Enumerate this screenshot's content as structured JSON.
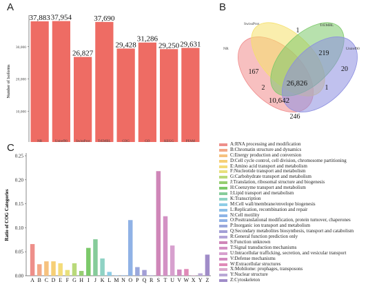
{
  "panels": {
    "a": "A",
    "b": "B",
    "c": "C"
  },
  "colors": {
    "bar_a": "#ee6c64",
    "axis": "#555555"
  },
  "chart_data": [
    {
      "type": "bar",
      "categories": [
        "NR",
        "Uniref90",
        "SwissProt",
        "TrEMBL",
        "COG",
        "GO",
        "KEGG",
        "PFAM"
      ],
      "values": [
        37883,
        37954,
        26827,
        37690,
        29428,
        31286,
        29250,
        29631
      ],
      "data_labels": [
        "37,883",
        "37,954",
        "26,827",
        "37,690",
        "29,428",
        "31,286",
        "29,250",
        "29,631"
      ],
      "ylabel": "Number of Isoforms",
      "ylim": [
        0,
        40000
      ],
      "yticks": [
        0,
        10000,
        20000,
        30000
      ],
      "ytick_labels": [
        "0",
        "10,000",
        "20,000",
        "30,000"
      ]
    },
    {
      "type": "venn",
      "sets": [
        {
          "name": "NR",
          "color": "#f08c8c"
        },
        {
          "name": "SwissProt",
          "color": "#f5e06a"
        },
        {
          "name": "TrEMBL",
          "color": "#7cc96a"
        },
        {
          "name": "Uniref90",
          "color": "#8c8ee0"
        }
      ],
      "counts": [
        {
          "region": "NR only",
          "value": "167"
        },
        {
          "region": "TrEMBL only",
          "value": "1"
        },
        {
          "region": "TrEMBL ∩ Uniref90",
          "value": "219"
        },
        {
          "region": "Uniref90 only",
          "value": "20"
        },
        {
          "region": "NR ∩ SwissProt ∩ TrEMBL",
          "value": "2"
        },
        {
          "region": "All four",
          "value": "26,826"
        },
        {
          "region": "SwissProt ∩ TrEMBL ∩ Uniref90",
          "value": "1"
        },
        {
          "region": "NR ∩ TrEMBL ∩ Uniref90",
          "value": "10,642"
        },
        {
          "region": "NR ∩ Uniref90",
          "value": "246"
        }
      ]
    },
    {
      "type": "bar",
      "categories": [
        "A",
        "B",
        "C",
        "D",
        "E",
        "F",
        "G",
        "H",
        "I",
        "J",
        "K",
        "L",
        "M",
        "N",
        "O",
        "P",
        "Q",
        "R",
        "S",
        "T",
        "U",
        "V",
        "W",
        "X",
        "Y",
        "Z"
      ],
      "values": [
        0.066,
        0.024,
        0.03,
        0.03,
        0.026,
        0.012,
        0.026,
        0.01,
        0.058,
        0.076,
        0.036,
        0.008,
        0.001,
        0.001,
        0.116,
        0.018,
        0.012,
        0.001,
        0.218,
        0.124,
        0.063,
        0.013,
        0.014,
        0.001,
        0.005,
        0.044
      ],
      "colors": [
        "#ee8f8a",
        "#f2a988",
        "#f6c27f",
        "#f6cf75",
        "#f4dc7a",
        "#e8e07c",
        "#b9d97a",
        "#96ce72",
        "#7cc96a",
        "#86cc9a",
        "#8fd2c4",
        "#8ecde6",
        "#8ec0e8",
        "#8db4e6",
        "#90b2e6",
        "#9aa8dc",
        "#a39fd6",
        "#b3a4d8",
        "#cf86b8",
        "#d391c4",
        "#d7a0ce",
        "#d28ac0",
        "#e08ab8",
        "#d9a8cc",
        "#b9a8d6",
        "#a08cc8"
      ],
      "ylabel": "Ratio of COG Categories",
      "ylim": [
        0,
        0.25
      ],
      "yticks": [
        0,
        0.05,
        0.1,
        0.15,
        0.2,
        0.25
      ],
      "ytick_labels": [
        "0.00",
        "0.05",
        "0.10",
        "0.15",
        "0.20",
        "0.25"
      ],
      "legend": [
        "A:RNA processing and modification",
        "B:Chromatin structure and dynamics",
        "C:Energy production and conversion",
        "D:Cell cycle control, cell division, chromosome partitioning",
        "E:Amino acid transport and metabolism",
        "F:Nucleotide transport and metabolism",
        "G:Carbohydrate transport and metabolism",
        "J:Translation, ribosomal structure and biogenesis",
        "H:Coenzyme transport and metabolism",
        "I:Lipid transport and metabolism",
        "K:Transcription",
        "M:Cell wall/membrane/envelope biogenesis",
        "L:Replication, recombination and repair",
        "N:Cell motility",
        "O:Posttranslational modification, protein turnover, chaperones",
        "P:Inorganic ion transport and metabolism",
        "Q:Secondary metabolites biosynthesis, transport and catabolism",
        "R:General function prediction only",
        "S:Function unknown",
        "T:Signal transduction mechanisms",
        "U:Intracellular trafficking, secretion, and vesicular transport",
        "V:Defense mechanisms",
        "W:Extracellular structures",
        "X:Mobilome: prophages, transposons",
        "Y:Nuclear structure",
        "Z:Cytoskeleton"
      ]
    }
  ]
}
